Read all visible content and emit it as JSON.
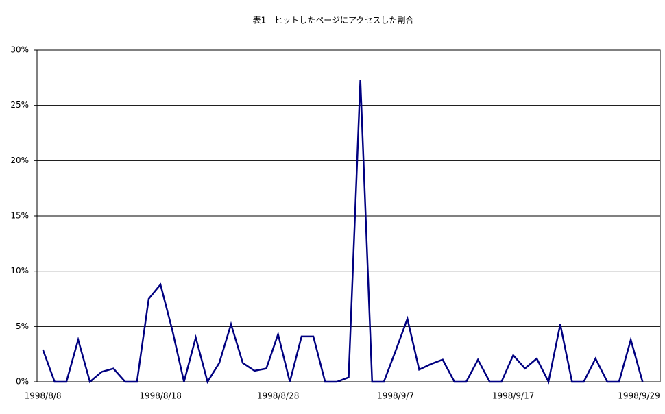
{
  "chart_data": {
    "type": "line",
    "title": "表1　ヒットしたページにアクセスした割合",
    "categories": [
      "1998/8/8",
      null,
      null,
      null,
      null,
      null,
      null,
      null,
      null,
      null,
      "1998/8/18",
      null,
      null,
      null,
      null,
      null,
      null,
      null,
      null,
      null,
      "1998/8/28",
      null,
      null,
      null,
      null,
      null,
      null,
      null,
      null,
      null,
      "1998/9/7",
      null,
      null,
      null,
      null,
      null,
      null,
      null,
      null,
      null,
      "1998/9/17",
      null,
      null,
      null,
      null,
      null,
      null,
      null,
      null,
      null,
      null,
      null,
      "1998/9/29"
    ],
    "values": [
      2.9,
      0,
      0,
      3.8,
      0,
      0.9,
      1.2,
      0,
      0,
      7.5,
      8.8,
      4.7,
      0,
      4.0,
      0,
      1.7,
      5.2,
      1.7,
      1.0,
      1.2,
      4.3,
      0,
      4.1,
      4.1,
      0,
      0,
      0.4,
      27.3,
      0,
      0,
      2.8,
      5.7,
      1.1,
      1.6,
      2.0,
      0,
      0,
      2.0,
      0,
      0,
      2.4,
      1.2,
      2.1,
      0,
      5.2,
      0,
      0,
      2.1,
      0,
      0,
      3.8,
      0,
      null
    ],
    "color": "#000080",
    "ylim": [
      0,
      30
    ],
    "yticks": [
      {
        "value": 0,
        "label": "0%"
      },
      {
        "value": 5,
        "label": "5%"
      },
      {
        "value": 10,
        "label": "10%"
      },
      {
        "value": 15,
        "label": "15%"
      },
      {
        "value": 20,
        "label": "20%"
      },
      {
        "value": 25,
        "label": "25%"
      },
      {
        "value": 30,
        "label": "30%"
      }
    ],
    "grid": true
  }
}
